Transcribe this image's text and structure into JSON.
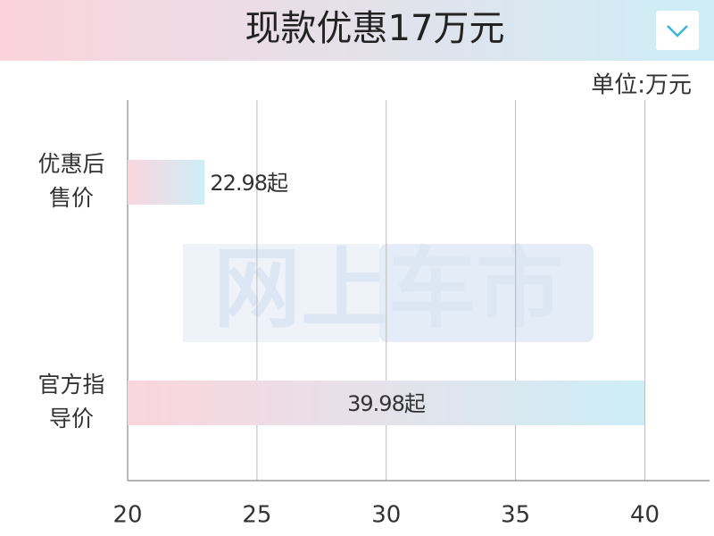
{
  "chart_data": {
    "type": "hbar",
    "title": "现款优惠17万元",
    "unit_label": "单位:万元",
    "watermark": "网上车市",
    "categories": [
      [
        "优惠后",
        "售价"
      ],
      [
        "官方指",
        "导价"
      ]
    ],
    "values": [
      22.98,
      39.98
    ],
    "value_labels": [
      "22.98起",
      "39.98起"
    ],
    "colors": [
      "#fbd5dd",
      "#cdeef7"
    ],
    "xlim": [
      20,
      42.5
    ],
    "xticks": [
      20,
      25,
      30,
      35,
      40
    ],
    "grid": true
  }
}
